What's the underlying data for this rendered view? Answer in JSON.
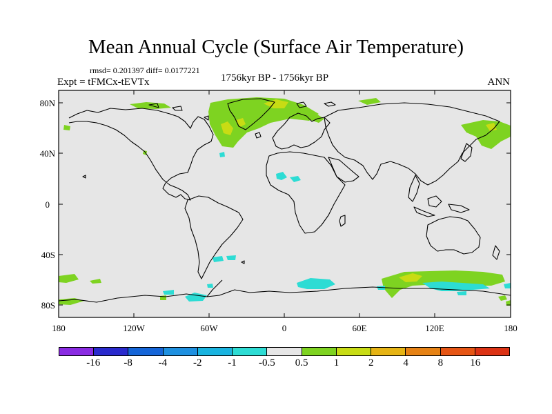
{
  "title": "Mean Annual Cycle (Surface Air Temperature)",
  "stats": "rmsd= 0.201397 diff= 0.0177221",
  "experiment": "Expt = tFMCx-tEVTx",
  "period": "1756kyr BP - 1756kyr BP",
  "season": "ANN",
  "lat_labels": [
    "80N",
    "40N",
    "0",
    "40S",
    "80S"
  ],
  "lon_labels": [
    "180",
    "120W",
    "60W",
    "0",
    "60E",
    "120E",
    "180"
  ],
  "colorbar": {
    "labels": [
      "-16",
      "-8",
      "-4",
      "-2",
      "-1",
      "-0.5",
      "0.5",
      "1",
      "2",
      "4",
      "8",
      "16"
    ],
    "colors": [
      "#8a2be2",
      "#2a2acd",
      "#1565d8",
      "#1e90e0",
      "#19b4e0",
      "#2ddcd4",
      "#e6e6e6",
      "#7ed321",
      "#c8dc14",
      "#e6b414",
      "#e68214",
      "#e65514",
      "#dc3214"
    ]
  },
  "map_background": "#e6e6e6"
}
